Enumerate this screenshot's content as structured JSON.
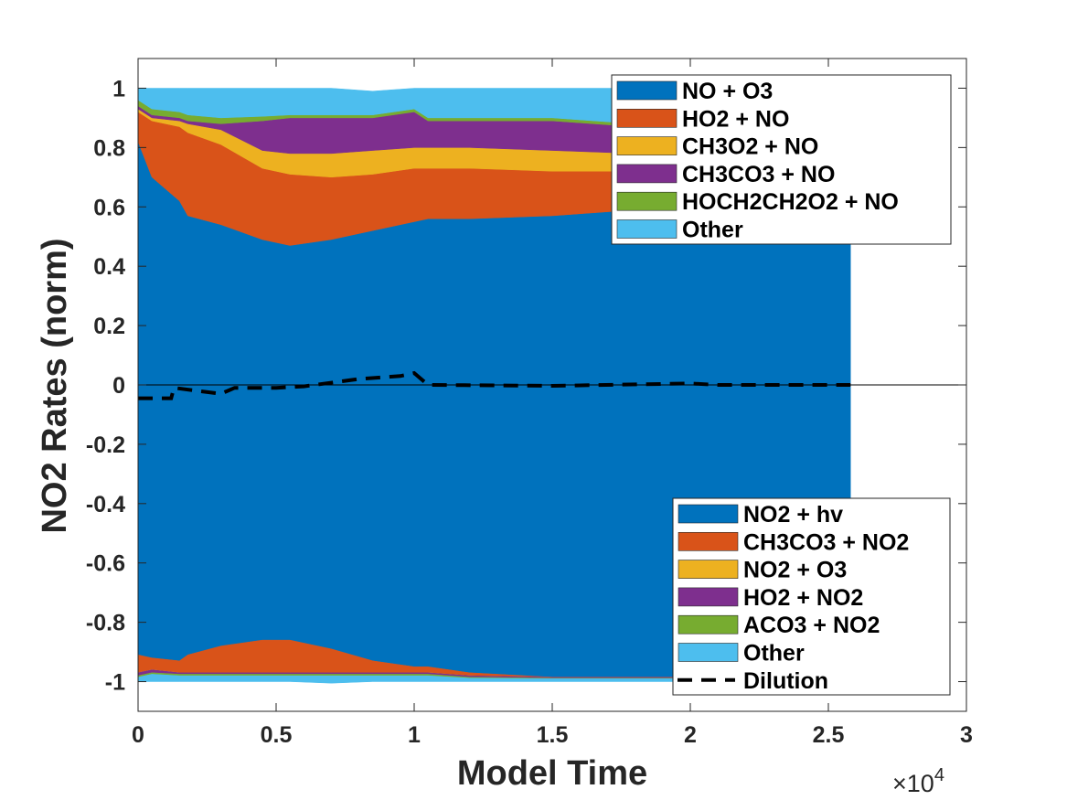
{
  "chart_data": {
    "type": "area",
    "xlabel": "Model Time",
    "ylabel": "NO2 Rates (norm)",
    "x_exponent_label": "×10",
    "x_exponent_power": "4",
    "xlim": [
      0,
      3
    ],
    "ylim": [
      -1.1,
      1.1
    ],
    "x_ticks": [
      "0",
      "0.5",
      "1",
      "1.5",
      "2",
      "2.5",
      "3"
    ],
    "y_ticks": [
      "-1",
      "-0.8",
      "-0.6",
      "-0.4",
      "-0.2",
      "0",
      "0.2",
      "0.4",
      "0.6",
      "0.8",
      "1"
    ],
    "grid": false,
    "colors": {
      "blue": "#0072BD",
      "orange": "#D95319",
      "yellow": "#EDB120",
      "purple": "#7E2F8E",
      "green": "#77AC30",
      "cyan": "#4DBEEE"
    },
    "x": [
      0,
      0.05,
      0.15,
      0.18,
      0.3,
      0.45,
      0.55,
      0.7,
      0.85,
      1.0,
      1.05,
      1.2,
      1.5,
      1.8,
      2.1,
      2.58
    ],
    "production_series": [
      {
        "name": "NO + O3",
        "color": "#0072BD",
        "values": [
          0.82,
          0.7,
          0.62,
          0.57,
          0.54,
          0.49,
          0.47,
          0.49,
          0.52,
          0.55,
          0.56,
          0.56,
          0.57,
          0.59,
          0.61,
          0.63
        ]
      },
      {
        "name": "HO2 + NO",
        "color": "#D95319",
        "values": [
          0.1,
          0.19,
          0.25,
          0.28,
          0.27,
          0.24,
          0.24,
          0.21,
          0.19,
          0.18,
          0.17,
          0.17,
          0.15,
          0.13,
          0.12,
          0.1
        ]
      },
      {
        "name": "CH3O2 + NO",
        "color": "#EDB120",
        "values": [
          0.01,
          0.01,
          0.02,
          0.03,
          0.05,
          0.06,
          0.07,
          0.08,
          0.08,
          0.07,
          0.07,
          0.07,
          0.07,
          0.06,
          0.06,
          0.05
        ]
      },
      {
        "name": "CH3CO3 + NO",
        "color": "#7E2F8E",
        "values": [
          0.01,
          0.01,
          0.01,
          0.01,
          0.02,
          0.1,
          0.12,
          0.12,
          0.11,
          0.12,
          0.09,
          0.09,
          0.1,
          0.09,
          0.08,
          0.08
        ]
      },
      {
        "name": "HOCH2CH2O2 + NO",
        "color": "#77AC30",
        "values": [
          0.02,
          0.02,
          0.02,
          0.02,
          0.02,
          0.015,
          0.01,
          0.01,
          0.01,
          0.01,
          0.01,
          0.01,
          0.01,
          0.01,
          0.01,
          0.01
        ]
      },
      {
        "name": "Other",
        "color": "#4DBEEE",
        "values": [
          0.04,
          0.07,
          0.08,
          0.09,
          0.1,
          0.095,
          0.09,
          0.09,
          0.08,
          0.07,
          0.1,
          0.1,
          0.1,
          0.12,
          0.12,
          0.13
        ]
      }
    ],
    "loss_series": [
      {
        "name": "NO2 + hv",
        "color": "#0072BD",
        "values": [
          -0.91,
          -0.92,
          -0.93,
          -0.91,
          -0.88,
          -0.86,
          -0.86,
          -0.89,
          -0.93,
          -0.95,
          -0.95,
          -0.97,
          -0.985,
          -0.985,
          -0.985,
          -0.985
        ]
      },
      {
        "name": "CH3CO3 + NO2",
        "color": "#D95319",
        "values": [
          -0.06,
          -0.04,
          -0.04,
          -0.06,
          -0.09,
          -0.11,
          -0.11,
          -0.08,
          -0.04,
          -0.02,
          -0.02,
          -0.01,
          0,
          0,
          0,
          0
        ]
      },
      {
        "name": "NO2 + O3",
        "color": "#EDB120",
        "values": [
          0,
          0,
          0,
          0,
          0,
          0,
          0,
          0,
          0,
          0,
          0,
          0,
          0,
          0,
          0,
          0
        ]
      },
      {
        "name": "HO2 + NO2",
        "color": "#7E2F8E",
        "values": [
          -0.01,
          -0.01,
          -0.005,
          -0.005,
          -0.005,
          -0.005,
          -0.005,
          -0.005,
          -0.005,
          -0.005,
          -0.005,
          -0.005,
          -0.003,
          -0.003,
          -0.003,
          -0.003
        ]
      },
      {
        "name": "ACO3 + NO2",
        "color": "#77AC30",
        "values": [
          -0.005,
          -0.005,
          -0.005,
          -0.005,
          -0.005,
          -0.005,
          -0.005,
          -0.005,
          -0.005,
          -0.005,
          -0.005,
          -0.003,
          -0.002,
          -0.002,
          -0.002,
          -0.002
        ]
      },
      {
        "name": "Other",
        "color": "#4DBEEE",
        "values": [
          -0.015,
          -0.025,
          -0.02,
          -0.02,
          -0.02,
          -0.02,
          -0.02,
          -0.025,
          -0.02,
          -0.02,
          -0.02,
          -0.012,
          -0.01,
          -0.01,
          -0.01,
          -0.01
        ]
      }
    ],
    "dilution": {
      "name": "Dilution",
      "style": "dashed",
      "color": "#000000",
      "x": [
        0,
        0.12,
        0.13,
        0.3,
        0.35,
        0.5,
        0.6,
        0.8,
        0.95,
        1.0,
        1.05,
        1.5,
        2.0,
        2.1,
        2.58
      ],
      "values": [
        -0.045,
        -0.045,
        -0.01,
        -0.03,
        -0.01,
        -0.01,
        -0.005,
        0.02,
        0.03,
        0.04,
        0.0,
        -0.003,
        0.005,
        0.0,
        0.0
      ]
    },
    "legends": [
      {
        "placement": "top-right",
        "entries": [
          "NO + O3",
          "HO2 + NO",
          "CH3O2 + NO",
          "CH3CO3 + NO",
          "HOCH2CH2O2 + NO",
          "Other"
        ]
      },
      {
        "placement": "bottom-right",
        "entries": [
          "NO2 + hv",
          "CH3CO3 + NO2",
          "NO2 + O3",
          "HO2 + NO2",
          "ACO3 + NO2",
          "Other",
          "Dilution"
        ]
      }
    ]
  }
}
